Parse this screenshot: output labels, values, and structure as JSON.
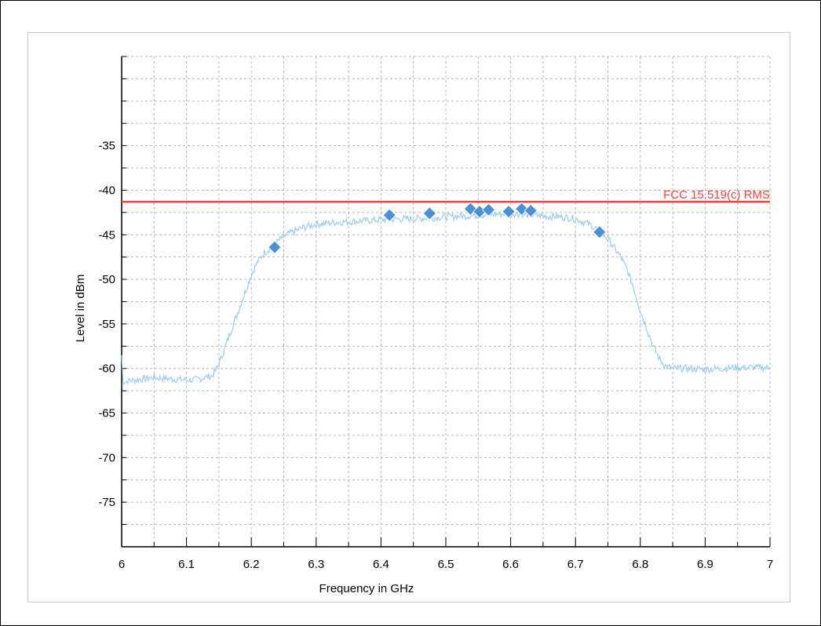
{
  "chart_data": {
    "type": "line",
    "xlabel": "Frequency in GHz",
    "ylabel": "Level in dBm",
    "xlim": [
      6.0,
      7.0
    ],
    "ylim": [
      -80,
      -25
    ],
    "x_ticks": [
      "6",
      "6.1",
      "6.2",
      "6.3",
      "6.4",
      "6.5",
      "6.6",
      "6.7",
      "6.8",
      "6.9",
      "7"
    ],
    "y_ticks": [
      "-35",
      "-40",
      "-45",
      "-50",
      "-55",
      "-60",
      "-65",
      "-70",
      "-75"
    ],
    "grid": true,
    "limit_line": {
      "label": "FCC 15.519(c) RMS",
      "value": -41.3,
      "color": "#ee4444"
    },
    "series": [
      {
        "color": "#9ccdf0",
        "x": [
          6.0,
          6.002,
          6.02,
          6.05,
          6.08,
          6.11,
          6.14,
          6.15,
          6.16,
          6.17,
          6.18,
          6.19,
          6.2,
          6.21,
          6.22,
          6.23,
          6.24,
          6.25,
          6.26,
          6.28,
          6.3,
          6.33,
          6.36,
          6.4,
          6.45,
          6.5,
          6.55,
          6.6,
          6.65,
          6.68,
          6.7,
          6.72,
          6.73,
          6.74,
          6.75,
          6.76,
          6.77,
          6.78,
          6.79,
          6.8,
          6.81,
          6.82,
          6.83,
          6.84,
          6.85,
          6.87,
          6.9,
          6.95,
          7.0
        ],
        "y": [
          -58.5,
          -61.5,
          -61.3,
          -61.0,
          -61.2,
          -61.3,
          -60.8,
          -59.5,
          -57.5,
          -55.5,
          -53.5,
          -51.5,
          -49.5,
          -48.0,
          -47.0,
          -46.5,
          -45.8,
          -45.2,
          -44.8,
          -44.2,
          -43.8,
          -43.6,
          -43.5,
          -43.3,
          -43.2,
          -43.0,
          -42.8,
          -42.6,
          -42.9,
          -43.0,
          -43.2,
          -43.8,
          -44.2,
          -44.8,
          -45.5,
          -46.5,
          -47.5,
          -49.0,
          -51.0,
          -53.5,
          -55.5,
          -57.5,
          -59.0,
          -59.8,
          -60.0,
          -60.0,
          -60.1,
          -59.9,
          -59.9
        ]
      }
    ],
    "markers": {
      "color": "#4a90d2",
      "points": [
        [
          6.236,
          -46.4
        ],
        [
          6.413,
          -42.8
        ],
        [
          6.475,
          -42.6
        ],
        [
          6.538,
          -42.1
        ],
        [
          6.552,
          -42.4
        ],
        [
          6.566,
          -42.2
        ],
        [
          6.597,
          -42.4
        ],
        [
          6.617,
          -42.1
        ],
        [
          6.631,
          -42.3
        ],
        [
          6.737,
          -44.7
        ]
      ]
    }
  }
}
